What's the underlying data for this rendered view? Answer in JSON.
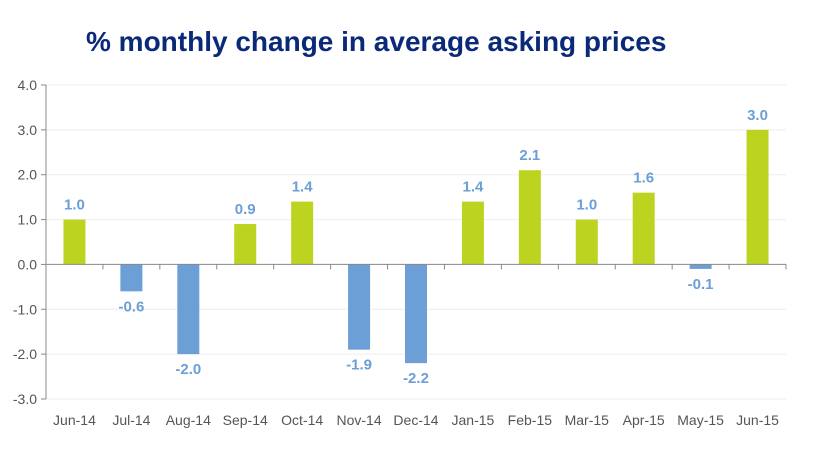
{
  "chart_data": {
    "type": "bar",
    "title": "% monthly change in average asking prices",
    "xlabel": "",
    "ylabel": "",
    "categories": [
      "Jun-14",
      "Jul-14",
      "Aug-14",
      "Sep-14",
      "Oct-14",
      "Nov-14",
      "Dec-14",
      "Jan-15",
      "Feb-15",
      "Mar-15",
      "Apr-15",
      "May-15",
      "Jun-15"
    ],
    "values": [
      1.0,
      -0.6,
      -2.0,
      0.9,
      1.4,
      -1.9,
      -2.2,
      1.4,
      2.1,
      1.0,
      1.6,
      -0.1,
      3.0
    ],
    "data_labels": [
      "1.0",
      "-0.6",
      "-2.0",
      "0.9",
      "1.4",
      "-1.9",
      "-2.2",
      "1.4",
      "2.1",
      "1.0",
      "1.6",
      "-0.1",
      "3.0"
    ],
    "ylim": [
      -3.0,
      4.0
    ],
    "yticks": [
      "4.0",
      "3.0",
      "2.0",
      "1.0",
      "0.0",
      "-1.0",
      "-2.0",
      "-3.0"
    ],
    "ytick_values": [
      4,
      3,
      2,
      1,
      0,
      -1,
      -2,
      -3
    ],
    "grid": true,
    "legend": "none",
    "colors": {
      "positive": "#bcd31f",
      "negative": "#6b9fd6",
      "title": "#0a2a78",
      "label_text": "#6b9fd6"
    }
  }
}
